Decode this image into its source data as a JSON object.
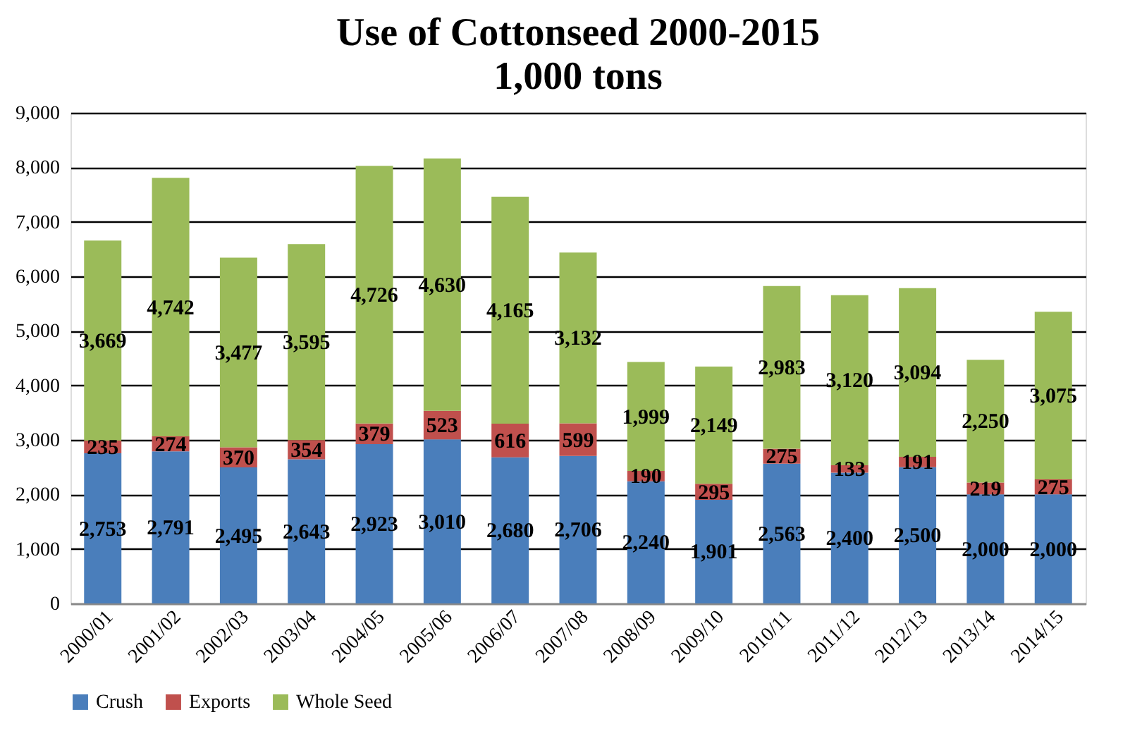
{
  "chart_data": {
    "type": "bar",
    "title": "Use of Cottonseed 2000-2015",
    "subtitle": "1,000 tons",
    "categories": [
      "2000/01",
      "2001/02",
      "2002/03",
      "2003/04",
      "2004/05",
      "2005/06",
      "2006/07",
      "2007/08",
      "2008/09",
      "2009/10",
      "2010/11",
      "2011/12",
      "2012/13",
      "2013/14",
      "2014/15"
    ],
    "series": [
      {
        "name": "Crush",
        "color": "#4a7ebb",
        "values": [
          2753,
          2791,
          2495,
          2643,
          2923,
          3010,
          2680,
          2706,
          2240,
          1901,
          2563,
          2400,
          2500,
          2000,
          2000
        ],
        "value_labels": [
          "2,753",
          "2,791",
          "2,495",
          "2,643",
          "2,923",
          "3,010",
          "2,680",
          "2,706",
          "2,240",
          "1,901",
          "2,563",
          "2,400",
          "2,500",
          "2,000",
          "2,000"
        ]
      },
      {
        "name": "Exports",
        "color": "#c0504d",
        "values": [
          235,
          274,
          370,
          354,
          379,
          523,
          616,
          599,
          190,
          295,
          275,
          133,
          191,
          219,
          275
        ],
        "value_labels": [
          "235",
          "274",
          "370",
          "354",
          "379",
          "523",
          "616",
          "599",
          "190",
          "295",
          "275",
          "133",
          "191",
          "219",
          "275"
        ]
      },
      {
        "name": "Whole Seed",
        "color": "#9bbb59",
        "values": [
          3669,
          4742,
          3477,
          3595,
          4726,
          4630,
          4165,
          3132,
          1999,
          2149,
          2983,
          3120,
          3094,
          2250,
          3075
        ],
        "value_labels": [
          "3,669",
          "4,742",
          "3,477",
          "3,595",
          "4,726",
          "4,630",
          "4,165",
          "3,132",
          "1,999",
          "2,149",
          "2,983",
          "3,120",
          "3,094",
          "2,250",
          "3,075"
        ]
      }
    ],
    "stacked": true,
    "ylim": [
      0,
      9000
    ],
    "yticks": [
      0,
      {
        "value": 1000,
        "label": "1,000"
      },
      {
        "value": 2000,
        "label": "2,000"
      },
      {
        "value": 3000,
        "label": "3,000"
      },
      {
        "value": 4000,
        "label": "4,000"
      },
      {
        "value": 5000,
        "label": "5,000"
      },
      {
        "value": 6000,
        "label": "6,000"
      },
      {
        "value": 7000,
        "label": "7,000"
      },
      {
        "value": 8000,
        "label": "8,000"
      },
      {
        "value": 9000,
        "label": "9,000"
      }
    ],
    "grid": "y",
    "legend": "bottom"
  }
}
